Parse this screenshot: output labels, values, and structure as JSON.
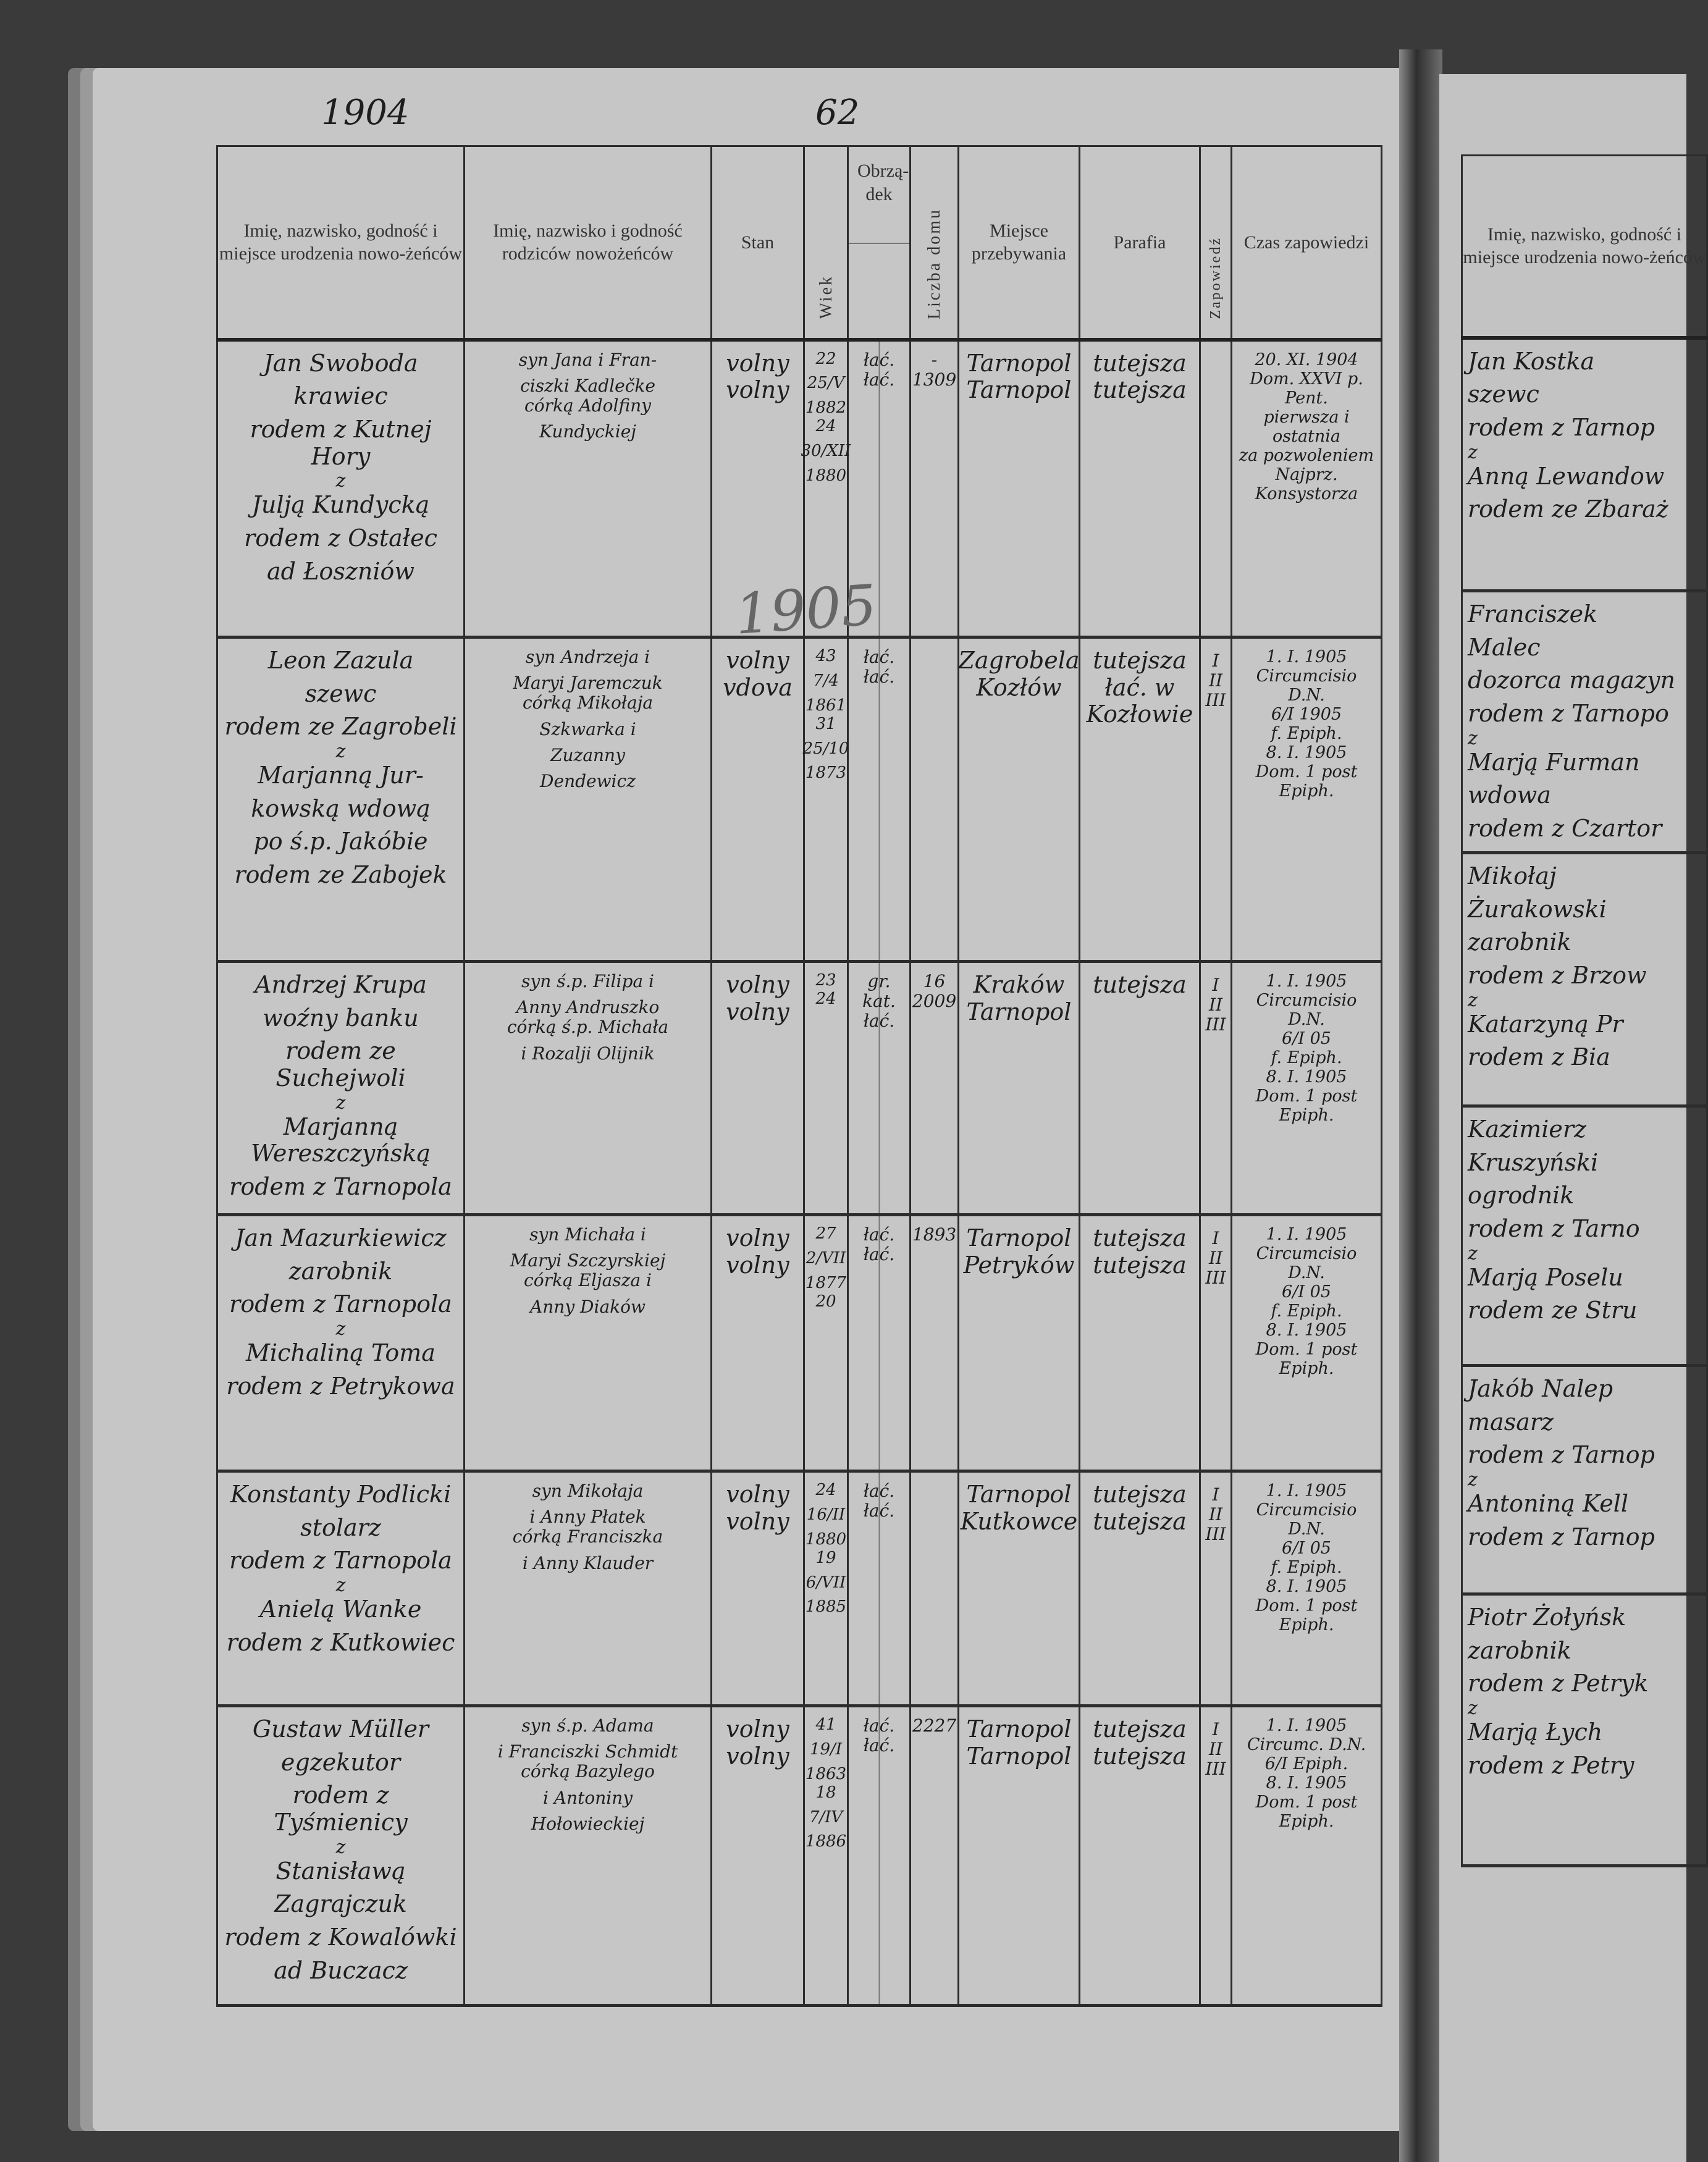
{
  "page": {
    "year_note": "1904",
    "page_number": "62",
    "pencil_year": "1905"
  },
  "headers": {
    "groom_bride": "Imię, nazwisko, godność i miejsce urodzenia nowo-żeńców",
    "parents": "Imię, nazwisko i godność rodziców nowożeńców",
    "stan": "Stan",
    "wiek": "Wiek",
    "obrzadek": "Obrzą-dek",
    "liczba_domu": "Liczba domu",
    "miejsce": "Miejsce przebywania",
    "parafia": "Parafia",
    "zapowiedz": "Zapowiedź",
    "czas": "Czas zapowiedzi"
  },
  "entries": [
    {
      "groom": [
        "Jan Swoboda",
        "krawiec",
        "rodem z Kutnej Hory"
      ],
      "bride": [
        "Julją Kundycką",
        "rodem z Ostałec",
        "ad Łoszniów"
      ],
      "parents": [
        [
          "syn Jana i Fran-",
          "ciszki Kadlečke"
        ],
        [
          "córką Adolfiny",
          "Kundyckiej"
        ]
      ],
      "stan": [
        "volny",
        "volny"
      ],
      "wiek": [
        [
          "22",
          "25/V",
          "1882"
        ],
        [
          "24",
          "30/XII",
          "1880"
        ]
      ],
      "obrzadek": [
        "łać.",
        "łać."
      ],
      "liczba_domu": [
        "-",
        "1309"
      ],
      "miejsce": [
        "Tarnopol",
        "Tarnopol"
      ],
      "parafia": [
        "tutejsza",
        "tutejsza"
      ],
      "zapowiedz": [],
      "czas": [
        "20. XI. 1904",
        "Dom. XXVI p. Pent.",
        "pierwsza i ostatnia",
        "za pozwoleniem",
        "Najprz. Konsystorza"
      ]
    },
    {
      "groom": [
        "Leon Zazula",
        "szewc",
        "rodem ze Zagrobeli"
      ],
      "bride": [
        "Marjanną Jur-",
        "kowską wdową",
        "po ś.p. Jakóbie",
        "rodem ze Zabojek"
      ],
      "parents": [
        [
          "syn Andrzeja i",
          "Maryi Jaremczuk"
        ],
        [
          "córką Mikołaja",
          "Szkwarka i",
          "Zuzanny",
          "Dendewicz"
        ]
      ],
      "stan": [
        "volny",
        "vdova"
      ],
      "wiek": [
        [
          "43",
          "7/4",
          "1861"
        ],
        [
          "31",
          "25/10",
          "1873"
        ]
      ],
      "obrzadek": [
        "łać.",
        "łać."
      ],
      "liczba_domu": [
        "",
        ""
      ],
      "miejsce": [
        "Zagrobela",
        "Kozłów"
      ],
      "parafia": [
        "tutejsza",
        "łać. w Kozłowie"
      ],
      "zapowiedz": [
        "I",
        "II",
        "III"
      ],
      "czas": [
        "1. I. 1905",
        "Circumcisio D.N.",
        "6/I 1905",
        "f. Epiph.",
        "8. I. 1905",
        "Dom. 1 post Epiph."
      ]
    },
    {
      "groom": [
        "Andrzej Krupa",
        "woźny banku",
        "rodem ze Suchejwoli"
      ],
      "bride": [
        "Marjanną Wereszczyńską",
        "rodem z Tarnopola"
      ],
      "parents": [
        [
          "syn ś.p. Filipa i",
          "Anny Andruszko"
        ],
        [
          "córką ś.p. Michała",
          "i Rozalji Olijnik"
        ]
      ],
      "stan": [
        "volny",
        "volny"
      ],
      "wiek": [
        [
          "23"
        ],
        [
          "24"
        ]
      ],
      "obrzadek": [
        "gr. kat.",
        "łać."
      ],
      "liczba_domu": [
        "16",
        "2009"
      ],
      "miejsce": [
        "Kraków",
        "Tarnopol"
      ],
      "parafia": [
        "",
        "tutejsza"
      ],
      "zapowiedz": [
        "I",
        "II",
        "III"
      ],
      "czas": [
        "1. I. 1905",
        "Circumcisio D.N.",
        "6/I 05",
        "f. Epiph.",
        "8. I. 1905",
        "Dom. 1 post Epiph."
      ]
    },
    {
      "groom": [
        "Jan Mazurkiewicz",
        "zarobnik",
        "rodem z Tarnopola"
      ],
      "bride": [
        "Michaliną Toma",
        "rodem z Petrykowa"
      ],
      "parents": [
        [
          "syn Michała i",
          "Maryi Szczyrskiej"
        ],
        [
          "córką Eljasza i",
          "Anny Diaków"
        ]
      ],
      "stan": [
        "volny",
        "volny"
      ],
      "wiek": [
        [
          "27",
          "2/VII",
          "1877"
        ],
        [
          "20"
        ]
      ],
      "obrzadek": [
        "łać.",
        "łać."
      ],
      "liczba_domu": [
        "1893",
        ""
      ],
      "miejsce": [
        "Tarnopol",
        "Petryków"
      ],
      "parafia": [
        "tutejsza",
        "tutejsza"
      ],
      "zapowiedz": [
        "I",
        "II",
        "III"
      ],
      "czas": [
        "1. I. 1905",
        "Circumcisio D.N.",
        "6/I 05",
        "f. Epiph.",
        "8. I. 1905",
        "Dom. 1 post Epiph."
      ]
    },
    {
      "groom": [
        "Konstanty Podlicki",
        "stolarz",
        "rodem z Tarnopola"
      ],
      "bride": [
        "Anielą Wanke",
        "rodem z Kutkowiec"
      ],
      "parents": [
        [
          "syn Mikołaja",
          "i Anny Płatek"
        ],
        [
          "córką Franciszka",
          "i Anny Klauder"
        ]
      ],
      "stan": [
        "volny",
        "volny"
      ],
      "wiek": [
        [
          "24",
          "16/II",
          "1880"
        ],
        [
          "19",
          "6/VII",
          "1885"
        ]
      ],
      "obrzadek": [
        "łać.",
        "łać."
      ],
      "liczba_domu": [
        "",
        ""
      ],
      "miejsce": [
        "Tarnopol",
        "Kutkowce"
      ],
      "parafia": [
        "tutejsza",
        "tutejsza"
      ],
      "zapowiedz": [
        "I",
        "II",
        "III"
      ],
      "czas": [
        "1. I. 1905",
        "Circumcisio D.N.",
        "6/I 05",
        "f. Epiph.",
        "8. I. 1905",
        "Dom. 1 post Epiph."
      ]
    },
    {
      "groom": [
        "Gustaw Müller",
        "egzekutor",
        "rodem z Tyśmienicy"
      ],
      "bride": [
        "Stanisławą",
        "Zagrajczuk",
        "rodem z Kowalówki",
        "ad Buczacz"
      ],
      "parents": [
        [
          "syn ś.p. Adama",
          "i Franciszki Schmidt"
        ],
        [
          "córką Bazylego",
          "i Antoniny",
          "Hołowieckiej"
        ]
      ],
      "stan": [
        "volny",
        "volny"
      ],
      "wiek": [
        [
          "41",
          "19/I",
          "1863"
        ],
        [
          "18",
          "7/IV",
          "1886"
        ]
      ],
      "obrzadek": [
        "łać.",
        "łać."
      ],
      "liczba_domu": [
        "",
        "2227"
      ],
      "miejsce": [
        "Tarnopol",
        "Tarnopol"
      ],
      "parafia": [
        "tutejsza",
        "tutejsza"
      ],
      "zapowiedz": [
        "I",
        "II",
        "III"
      ],
      "czas": [
        "1. I. 1905",
        "Circumc. D.N.",
        "6/I Epiph.",
        "8. I. 1905",
        "Dom. 1 post Epiph."
      ]
    }
  ],
  "right_page": {
    "header": "Imię, nazwisko, godność i miejsce urodzenia nowo-żeńców",
    "entries": [
      {
        "groom": [
          "Jan Kostka",
          "szewc",
          "rodem z Tarnop"
        ],
        "bride": [
          "Anną Lewandow",
          "rodem ze Zbaraż"
        ]
      },
      {
        "groom": [
          "Franciszek",
          "Malec",
          "dozorca magazyn",
          "rodem z Tarnopo"
        ],
        "bride": [
          "Marją Furman",
          "wdowa",
          "rodem z Czartor"
        ]
      },
      {
        "groom": [
          "Mikołaj",
          "Żurakowski",
          "zarobnik",
          "rodem z Brzow"
        ],
        "bride": [
          "Katarzyną Pr",
          "rodem z Bia"
        ]
      },
      {
        "groom": [
          "Kazimierz",
          "Kruszyński",
          "ogrodnik",
          "rodem z Tarno"
        ],
        "bride": [
          "Marją Poselu",
          "rodem ze Stru"
        ]
      },
      {
        "groom": [
          "Jakób Nalep",
          "masarz",
          "rodem z Tarnop"
        ],
        "bride": [
          "Antoniną Kell",
          "rodem z Tarnop"
        ]
      },
      {
        "groom": [
          "Piotr Żołyńsk",
          "zarobnik",
          "rodem z Petryk"
        ],
        "bride": [
          "Marją Łych",
          "rodem z Petry"
        ]
      }
    ],
    "conjunction": "z"
  }
}
